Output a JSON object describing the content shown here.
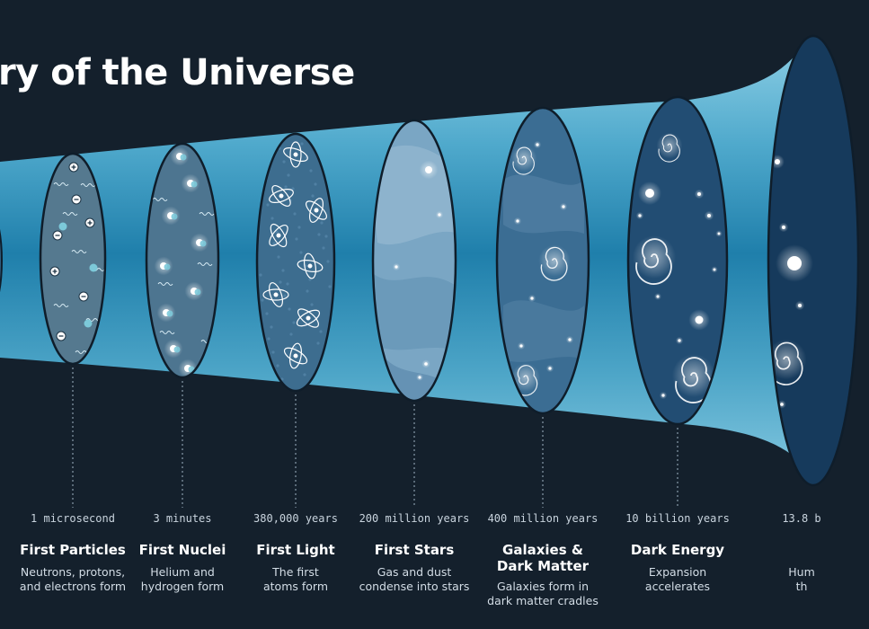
{
  "title": "ry of the Universe",
  "colors": {
    "background": "#14202c",
    "cone_light": "#63b7d4",
    "cone_mid": "#2788b3",
    "label_white": "#ffffff",
    "label_muted": "#c9d4de"
  },
  "stages": [
    {
      "time": "1 microsecond",
      "name": "First Particles",
      "desc": "Neutrons, protons,\nand electrons form"
    },
    {
      "time": "3 minutes",
      "name": "First Nuclei",
      "desc": "Helium and\nhydrogen form"
    },
    {
      "time": "380,000 years",
      "name": "First Light",
      "desc": "The first\natoms form"
    },
    {
      "time": "200 million years",
      "name": "First Stars",
      "desc": "Gas and dust\ncondense into stars"
    },
    {
      "time": "400 million years",
      "name": "Galaxies &\nDark Matter",
      "desc": "Galaxies form in\ndark matter cradles"
    },
    {
      "time": "10 billion years",
      "name": "Dark Energy",
      "desc": "Expansion\naccelerates"
    },
    {
      "time": "13.8 b",
      "name": "",
      "desc": "Hum\nth"
    }
  ]
}
